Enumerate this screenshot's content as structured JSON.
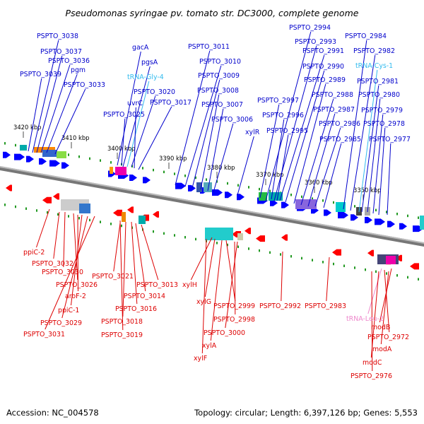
{
  "title": "Pseudomonas syringae pv. tomato str. DC3000, complete genome",
  "footer": {
    "accession": "Accession: NC_004578",
    "summary": "Topology: circular; Length: 6,397,126 bp; Genes: 5,553"
  },
  "colors": {
    "plus_label": "#0000cc",
    "minus_label": "#dd0000",
    "trna_plus_label": "#33bbee",
    "trna_minus_label": "#ee88cc",
    "plus_gene": "#0000ff",
    "minus_gene": "#ff0000",
    "axis": "#777777",
    "tick": "#229922"
  },
  "scale_labels": [
    "3420 kbp",
    "3410 kbp",
    "3400 kbp",
    "3390 kbp",
    "3380 kbp",
    "3370 kbp",
    "3360 kbp",
    "3350 kbp"
  ],
  "plus_labels": [
    "PSPTO_3038",
    "PSPTO_3037",
    "PSPTO_3036",
    "pgm",
    "PSPTO_3039",
    "PSPTO_3033",
    "gacA",
    "pgsA",
    "tRNA-Gly-4",
    "PSPTO_3020",
    "uvrC",
    "PSPTO_3017",
    "PSPTO_3025",
    "PSPTO_3011",
    "PSPTO_3010",
    "PSPTO_3009",
    "PSPTO_3008",
    "PSPTO_3007",
    "PSPTO_3006",
    "xylR",
    "PSPTO_2994",
    "PSPTO_2993",
    "PSPTO_2991",
    "PSPTO_2990",
    "PSPTO_2989",
    "PSPTO_2988",
    "PSPTO_2997",
    "PSPTO_2987",
    "PSPTO_2996",
    "PSPTO_2986",
    "PSPTO_2995",
    "PSPTO_2985",
    "PSPTO_2984",
    "PSPTO_2982",
    "tRNA-Cys-1",
    "PSPTO_2981",
    "PSPTO_2980",
    "PSPTO_2979",
    "PSPTO_2978",
    "PSPTO_2977"
  ],
  "minus_labels": [
    "ppiC-2",
    "PSPTO_3032",
    "PSPTO_3030",
    "PSPTO_3026",
    "aroF-2",
    "ppiC-1",
    "PSPTO_3029",
    "PSPTO_3031",
    "PSPTO_3021",
    "PSPTO_3013",
    "PSPTO_3014",
    "PSPTO_3016",
    "PSPTO_3018",
    "PSPTO_3019",
    "xylH",
    "xylG",
    "PSPTO_2999",
    "PSPTO_2998",
    "PSPTO_3000",
    "xylA",
    "xylF",
    "PSPTO_2992",
    "PSPTO_2983",
    "tRNA-Leu-2",
    "modB",
    "PSPTO_2972",
    "modA",
    "modC",
    "PSPTO_2976"
  ]
}
